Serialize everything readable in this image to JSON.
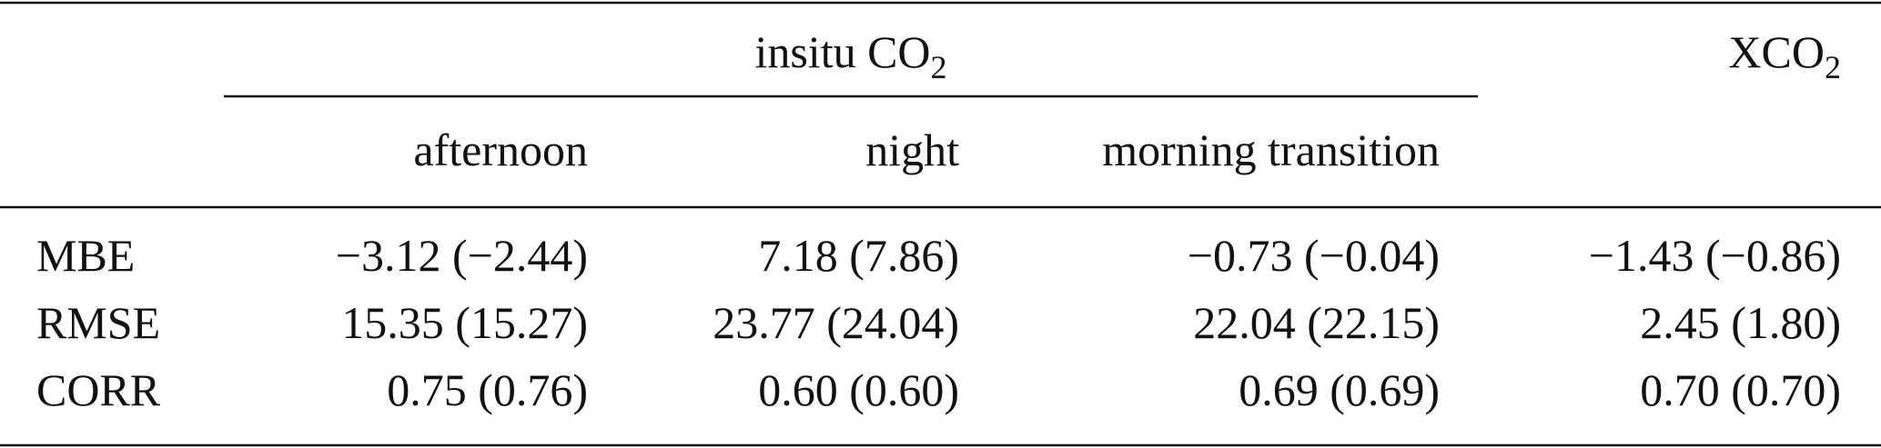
{
  "table": {
    "group_headers": [
      {
        "text": "insitu CO",
        "subscript": "2"
      },
      {
        "text": "XCO",
        "subscript": "2"
      }
    ],
    "columns": [
      "afternoon",
      "night",
      "morning transition"
    ],
    "rows": [
      [
        "MBE",
        "−3.12 (−2.44)",
        "7.18 (7.86)",
        "−0.73 (−0.04)",
        "−1.43 (−0.86)"
      ],
      [
        "RMSE",
        "15.35 (15.27)",
        "23.77 (24.04)",
        "22.04 (22.15)",
        "2.45 (1.80)"
      ],
      [
        "CORR",
        "0.75 (0.76)",
        "0.60 (0.60)",
        "0.69 (0.69)",
        "0.70 (0.70)"
      ]
    ]
  }
}
